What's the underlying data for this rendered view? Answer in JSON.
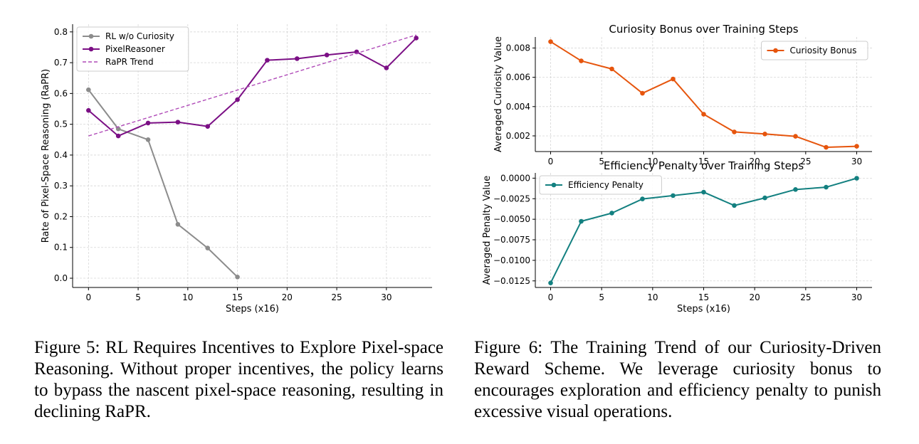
{
  "figures": [
    {
      "caption_label": "Figure 5:",
      "caption_text": "RL Requires Incentives to Explore Pixel-space Reasoning. Without proper incentives, the policy learns to bypass the nascent pixel-space reasoning, resulting in declining RaPR."
    },
    {
      "caption_label": "Figure 6:",
      "caption_text": "The Training Trend of our Curiosity-Driven Reward Scheme. We leverage curiosity bonus to encourages exploration and efficiency penalty to punish excessive visual operations."
    }
  ],
  "chart_data": [
    {
      "type": "line",
      "title": "",
      "xlabel": "Steps (x16)",
      "ylabel": "Rate of Pixel-Space Reasoning (RaPR)",
      "xlim": [
        -1.6,
        34.6
      ],
      "ylim": [
        -0.03,
        0.825
      ],
      "xticks": [
        0,
        5,
        10,
        15,
        20,
        25,
        30
      ],
      "yticks": [
        0.0,
        0.1,
        0.2,
        0.3,
        0.4,
        0.5,
        0.6,
        0.7,
        0.8
      ],
      "grid": true,
      "legend": "upper-left",
      "series": [
        {
          "name": "RL w/o Curiosity",
          "color": "#8c8c8c",
          "style": "solid-marker",
          "x": [
            0,
            3,
            6,
            9,
            12,
            15
          ],
          "y": [
            0.612,
            0.485,
            0.45,
            0.175,
            0.098,
            0.004
          ]
        },
        {
          "name": "PixelReasoner",
          "color": "#7b0f85",
          "style": "solid-marker",
          "x": [
            0,
            3,
            6,
            9,
            12,
            15,
            18,
            21,
            24,
            27,
            30,
            33
          ],
          "y": [
            0.545,
            0.462,
            0.504,
            0.507,
            0.493,
            0.58,
            0.708,
            0.713,
            0.725,
            0.735,
            0.683,
            0.78
          ]
        },
        {
          "name": "RaPR Trend",
          "color": "#b04bb8",
          "style": "dashed",
          "x": [
            0,
            33
          ],
          "y": [
            0.462,
            0.79
          ]
        }
      ]
    },
    {
      "type": "line",
      "title": "Curiosity Bonus over Training Steps",
      "xlabel": "",
      "ylabel": "Averaged Curiosity Value",
      "xlim": [
        -1.5,
        31.5
      ],
      "ylim": [
        0.00093,
        0.00875
      ],
      "xticks": [
        0,
        5,
        10,
        15,
        20,
        25,
        30
      ],
      "yticks": [
        0.002,
        0.004,
        0.006,
        0.008
      ],
      "grid": true,
      "legend": "upper-right",
      "series": [
        {
          "name": "Curiosity Bonus",
          "color": "#e6550d",
          "style": "solid-marker",
          "x": [
            0,
            3,
            6,
            9,
            12,
            15,
            18,
            21,
            24,
            27,
            30
          ],
          "y": [
            0.00843,
            0.00712,
            0.00657,
            0.00491,
            0.00588,
            0.00348,
            0.00227,
            0.00213,
            0.00197,
            0.00122,
            0.00129
          ]
        }
      ]
    },
    {
      "type": "line",
      "title": "Efficiency Penalty over Training Steps",
      "xlabel": "Steps (x16)",
      "ylabel": "Averaged Penalty Value",
      "xlim": [
        -1.5,
        31.5
      ],
      "ylim": [
        -0.0133,
        0.00064
      ],
      "xticks": [
        0,
        5,
        10,
        15,
        20,
        25,
        30
      ],
      "yticks": [
        -0.0125,
        -0.01,
        -0.0075,
        -0.005,
        -0.0025,
        0.0
      ],
      "grid": true,
      "legend": "upper-left",
      "series": [
        {
          "name": "Efficiency Penalty",
          "color": "#138080",
          "style": "solid-marker",
          "x": [
            0,
            3,
            6,
            9,
            12,
            15,
            18,
            21,
            24,
            27,
            30
          ],
          "y": [
            -0.01275,
            -0.00525,
            -0.00425,
            -0.00253,
            -0.00212,
            -0.0017,
            -0.00333,
            -0.0024,
            -0.00138,
            -0.0011,
            -1e-05
          ]
        }
      ]
    }
  ]
}
